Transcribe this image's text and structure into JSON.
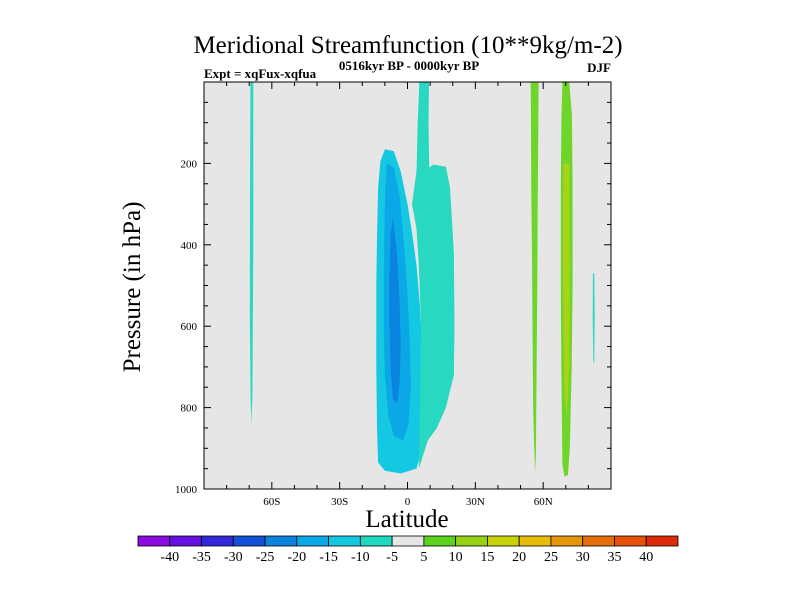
{
  "chart_data": {
    "type": "contour",
    "title": "Meridional Streamfunction (10**9kg/m-2)",
    "left_subtitle": "Expt = xqFux-xqfua",
    "center_subtitle": "0516kyr BP - 0000kyr BP",
    "right_subtitle": "DJF",
    "xlabel": "Latitude",
    "ylabel": "Pressure (in hPa)",
    "xlim": [
      -90,
      90
    ],
    "ylim": [
      1000,
      0
    ],
    "x_ticks": [
      {
        "value": -60,
        "label": "60S"
      },
      {
        "value": -30,
        "label": "30S"
      },
      {
        "value": 0,
        "label": "0"
      },
      {
        "value": 30,
        "label": "30N"
      },
      {
        "value": 60,
        "label": "60N"
      }
    ],
    "y_ticks": [
      {
        "value": 200,
        "label": "200"
      },
      {
        "value": 400,
        "label": "400"
      },
      {
        "value": 600,
        "label": "600"
      },
      {
        "value": 800,
        "label": "800"
      },
      {
        "value": 1000,
        "label": "1000"
      }
    ],
    "background_color": "#e6e6e6",
    "colorbar": {
      "labels": [
        "-40",
        "-35",
        "-30",
        "-25",
        "-20",
        "-15",
        "-10",
        "-5",
        "5",
        "10",
        "15",
        "20",
        "25",
        "30",
        "35",
        "40"
      ],
      "colors": [
        "#8a0ae0",
        "#6410e0",
        "#3228d8",
        "#1450d6",
        "#0a84de",
        "#0aa8e6",
        "#14c8e2",
        "#1ed8c0",
        "#e6e6e6",
        "#5ad21e",
        "#96d214",
        "#c8d20a",
        "#e6be0a",
        "#e6960a",
        "#e66e0a",
        "#e6500a",
        "#dc2a0a"
      ]
    },
    "regions": [
      {
        "name": "southern-narrow-strip",
        "class": "-10 to -5",
        "color": "#28d8c0",
        "points": [
          [
            -69.5,
            0
          ],
          [
            -68.2,
            0
          ],
          [
            -68.2,
            400
          ],
          [
            -68.4,
            600
          ],
          [
            -68.6,
            770
          ],
          [
            -69,
            840
          ],
          [
            -69.4,
            780
          ],
          [
            -69.7,
            600
          ],
          [
            -69.7,
            400
          ]
        ]
      },
      {
        "name": "equatorial-cell-outer",
        "class": "-10 to -5",
        "color": "#14c8e2",
        "points": [
          [
            -10,
            165
          ],
          [
            -6,
            170
          ],
          [
            -3,
            220
          ],
          [
            0,
            300
          ],
          [
            2,
            370
          ],
          [
            4,
            450
          ],
          [
            5.5,
            550
          ],
          [
            6.5,
            650
          ],
          [
            7,
            750
          ],
          [
            6.5,
            850
          ],
          [
            5.5,
            920
          ],
          [
            4,
            950
          ],
          [
            -3,
            962
          ],
          [
            -10,
            955
          ],
          [
            -13,
            935
          ],
          [
            -13.5,
            850
          ],
          [
            -13.8,
            700
          ],
          [
            -13.8,
            500
          ],
          [
            -13.5,
            380
          ],
          [
            -13,
            260
          ],
          [
            -12,
            195
          ]
        ]
      },
      {
        "name": "equatorial-cell-inner",
        "class": "-15 to -10",
        "color": "#0aa8e6",
        "points": [
          [
            -9,
            200
          ],
          [
            -6,
            210
          ],
          [
            -3.5,
            280
          ],
          [
            -1.5,
            400
          ],
          [
            0,
            520
          ],
          [
            1,
            640
          ],
          [
            1.5,
            750
          ],
          [
            0.5,
            840
          ],
          [
            -2,
            880
          ],
          [
            -6,
            870
          ],
          [
            -8.5,
            820
          ],
          [
            -10,
            720
          ],
          [
            -10.5,
            600
          ],
          [
            -10.5,
            480
          ],
          [
            -10.2,
            360
          ],
          [
            -9.8,
            260
          ]
        ]
      },
      {
        "name": "equatorial-cell-core",
        "class": "-20 to -15",
        "color": "#0a84de",
        "points": [
          [
            -6.5,
            330
          ],
          [
            -4.5,
            430
          ],
          [
            -3.5,
            540
          ],
          [
            -3,
            650
          ],
          [
            -3.5,
            740
          ],
          [
            -4.5,
            790
          ],
          [
            -6.5,
            780
          ],
          [
            -7.5,
            700
          ],
          [
            -8,
            590
          ],
          [
            -8,
            480
          ],
          [
            -7.5,
            380
          ]
        ]
      },
      {
        "name": "equatorial-northern-plume",
        "class": "-10 to -5",
        "color": "#28d8c0",
        "points": [
          [
            5.2,
            0
          ],
          [
            9.5,
            0
          ],
          [
            9.3,
            100
          ],
          [
            9.6,
            210
          ],
          [
            11.5,
            203
          ],
          [
            17,
            208
          ],
          [
            18.8,
            260
          ],
          [
            20.5,
            420
          ],
          [
            20.8,
            600
          ],
          [
            20.5,
            720
          ],
          [
            17,
            800
          ],
          [
            13,
            850
          ],
          [
            9,
            880
          ],
          [
            5,
            950
          ],
          [
            5.5,
            800
          ],
          [
            6,
            600
          ],
          [
            5,
            450
          ],
          [
            4,
            360
          ],
          [
            2,
            300
          ],
          [
            4,
            220
          ],
          [
            4.5,
            100
          ]
        ]
      },
      {
        "name": "northern-strip-60N",
        "class": "5 to 10",
        "color": "#6ed62a",
        "points": [
          [
            54.5,
            0
          ],
          [
            58,
            0
          ],
          [
            57.8,
            150
          ],
          [
            57.6,
            300
          ],
          [
            57.4,
            500
          ],
          [
            57.1,
            700
          ],
          [
            56.8,
            920
          ],
          [
            56.4,
            960
          ],
          [
            55.6,
            810
          ],
          [
            55.3,
            600
          ],
          [
            55,
            400
          ],
          [
            54.7,
            250
          ],
          [
            54.6,
            100
          ]
        ]
      },
      {
        "name": "northern-strip-70N",
        "class": "5 to 10",
        "color": "#6ed62a",
        "points": [
          [
            68.5,
            0
          ],
          [
            71.5,
            0
          ],
          [
            72.7,
            80
          ],
          [
            73,
            250
          ],
          [
            73,
            500
          ],
          [
            72.6,
            700
          ],
          [
            71.8,
            900
          ],
          [
            71,
            965
          ],
          [
            69.5,
            970
          ],
          [
            68.5,
            940
          ],
          [
            68,
            700
          ],
          [
            67.8,
            500
          ],
          [
            67.8,
            250
          ],
          [
            68.1,
            80
          ]
        ]
      },
      {
        "name": "northern-strip-70N-core",
        "class": "10 to 15",
        "color": "#a8d414",
        "points": [
          [
            69,
            200
          ],
          [
            71.5,
            200
          ],
          [
            71.8,
            450
          ],
          [
            71.5,
            700
          ],
          [
            70.5,
            820
          ],
          [
            69.5,
            780
          ],
          [
            69,
            600
          ],
          [
            68.8,
            400
          ]
        ]
      },
      {
        "name": "far-north-sliver",
        "class": "-10 to -5",
        "color": "#28d8c0",
        "points": [
          [
            82,
            470
          ],
          [
            82.6,
            470
          ],
          [
            82.8,
            580
          ],
          [
            82.6,
            690
          ],
          [
            82.2,
            690
          ],
          [
            81.9,
            580
          ]
        ]
      }
    ]
  }
}
